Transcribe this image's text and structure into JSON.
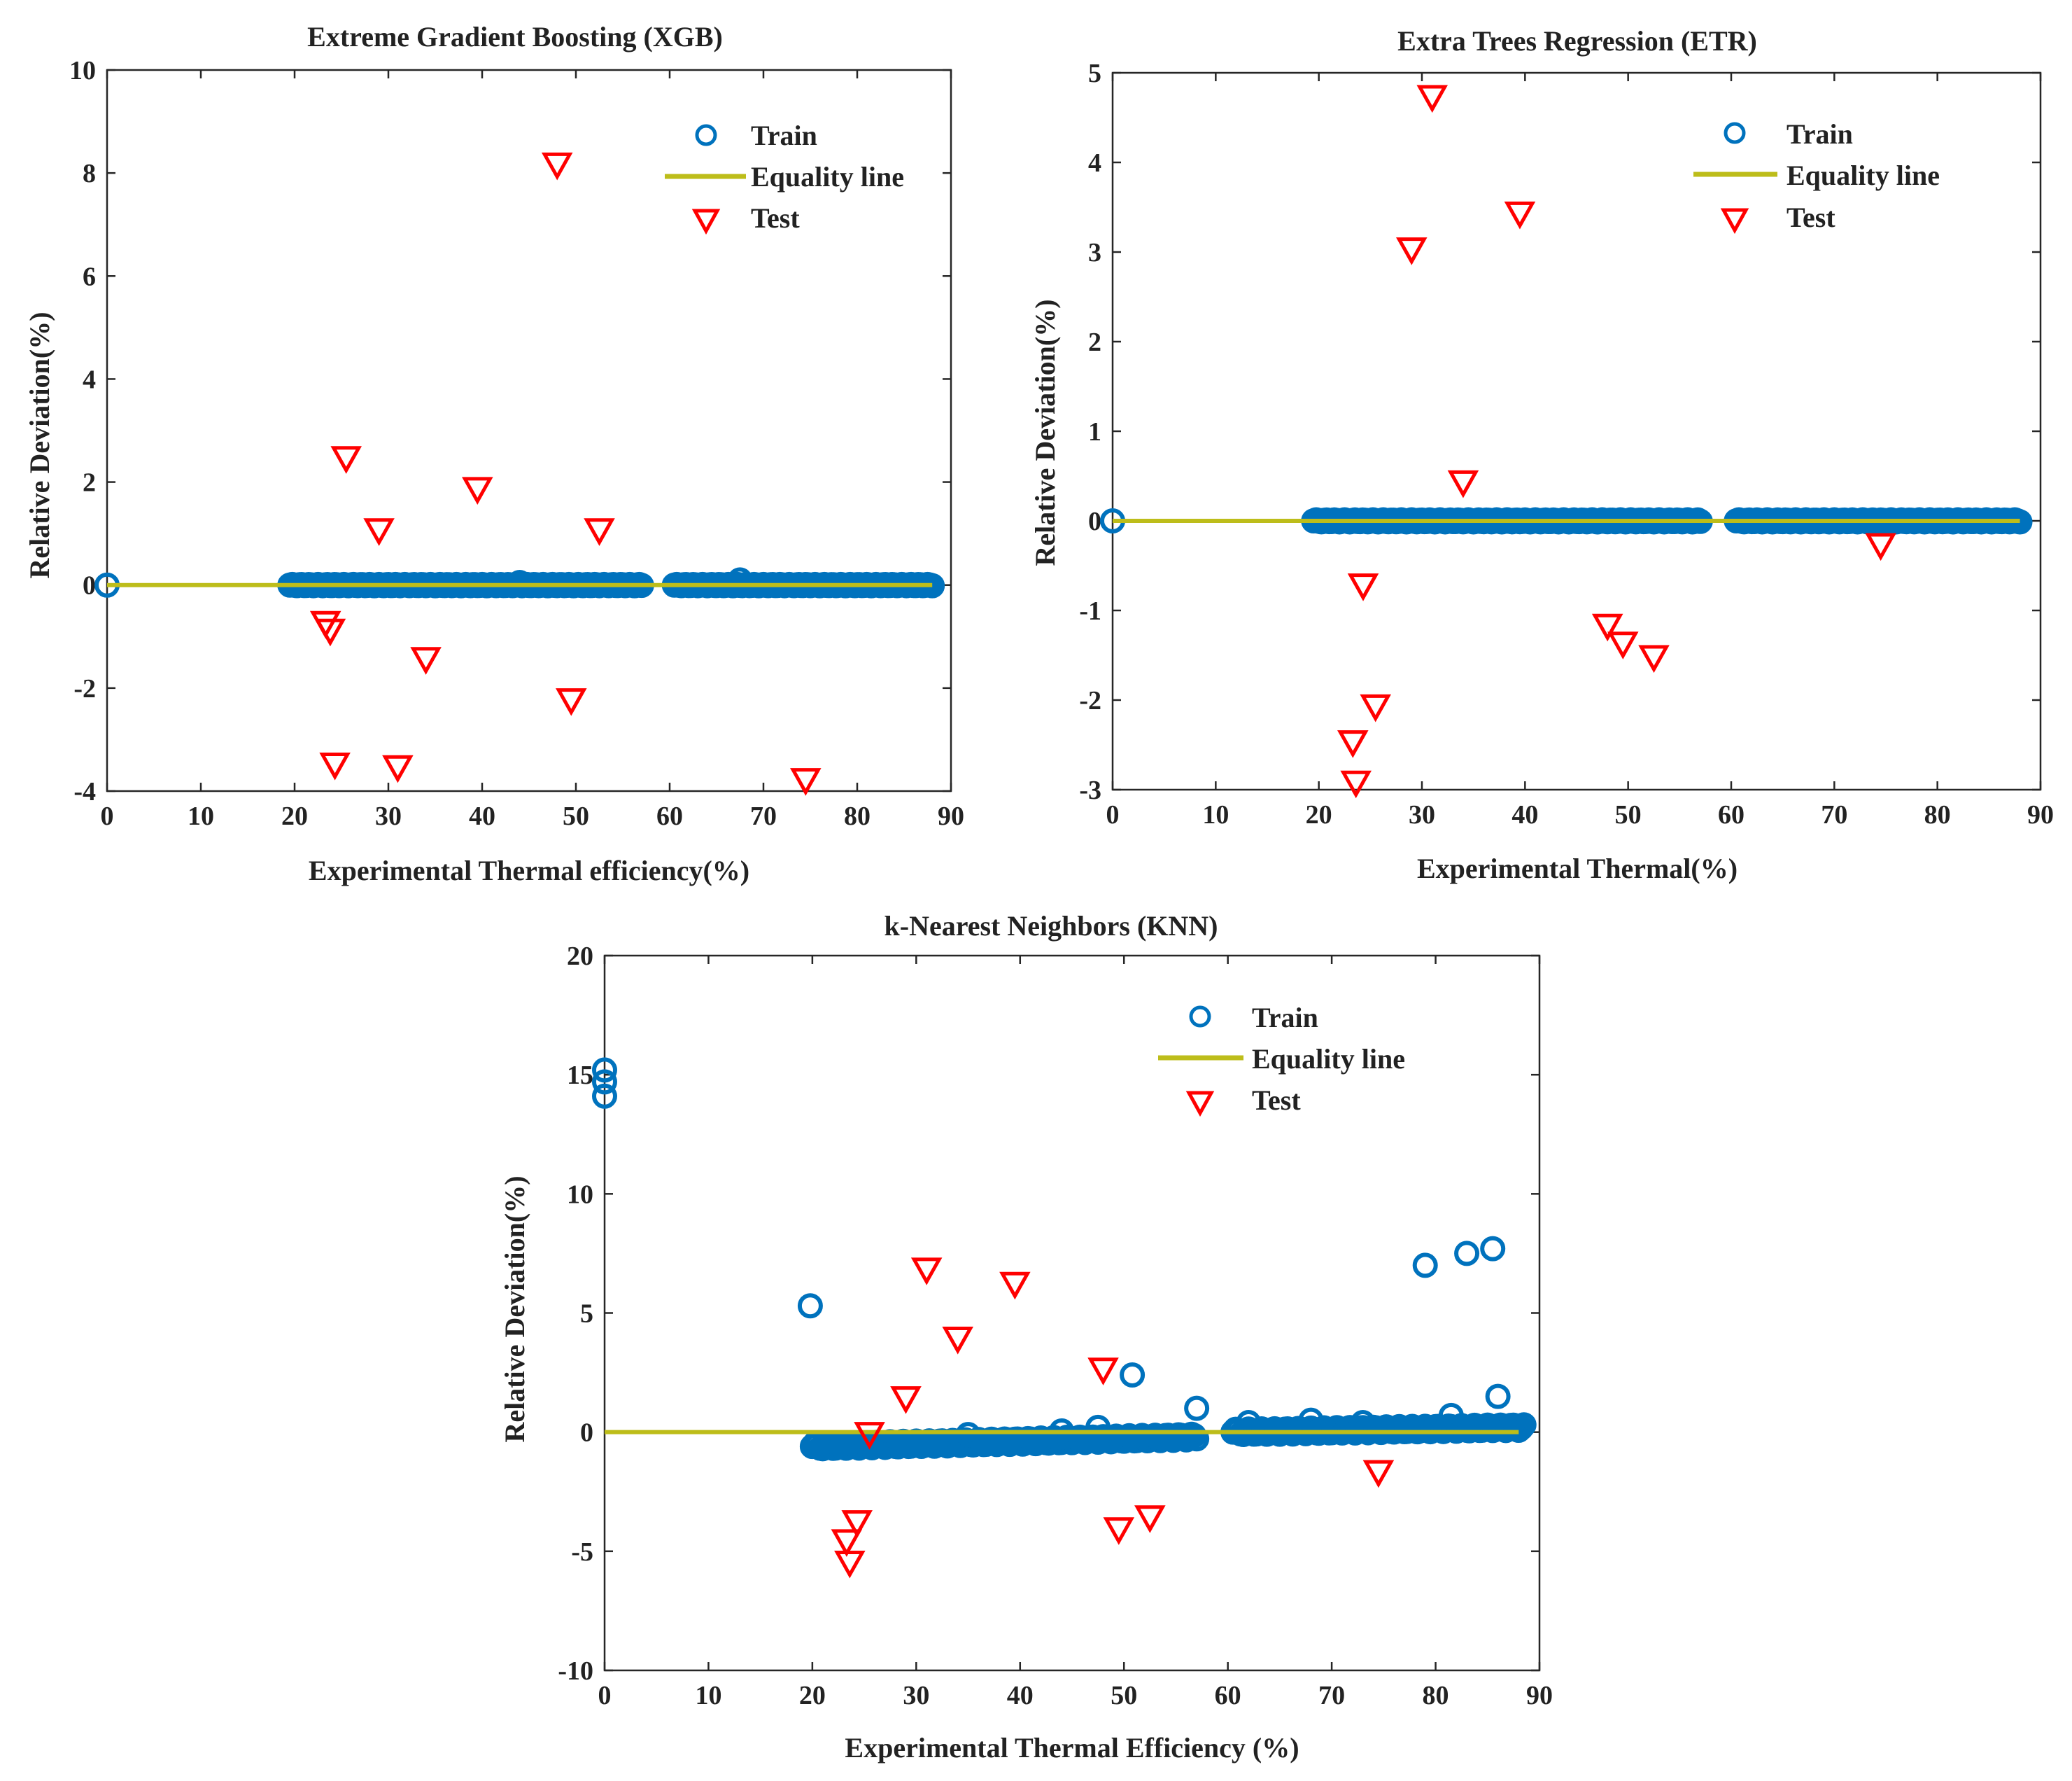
{
  "colors": {
    "train": "#0072BD",
    "test": "#FF0000",
    "equality": "#BDBD1A",
    "axis": "#262626"
  },
  "chart_data": [
    {
      "id": "xgb",
      "type": "scatter",
      "title": "Extreme Gradient Boosting (XGB)",
      "xlabel": "Experimental Thermal efficiency(%)",
      "ylabel": "Relative Deviation(%)",
      "xlim": [
        0,
        90
      ],
      "ylim": [
        -4,
        10
      ],
      "xticks": [
        0,
        10,
        20,
        30,
        40,
        50,
        60,
        70,
        80,
        90
      ],
      "yticks": [
        -4,
        -2,
        0,
        2,
        4,
        6,
        8,
        10
      ],
      "legend": {
        "position": "top-right",
        "entries": [
          "Train",
          "Equality line",
          "Test"
        ]
      },
      "equality_line": {
        "x": [
          0,
          88
        ],
        "y": [
          0,
          0
        ]
      },
      "train": {
        "clusters": [
          {
            "x_start": 19.5,
            "x_end": 57,
            "y": 0
          },
          {
            "x_start": 60.5,
            "x_end": 88,
            "y": 0
          }
        ],
        "points": [
          {
            "x": 0,
            "y": 0
          },
          {
            "x": 67.5,
            "y": 0.1
          },
          {
            "x": 44,
            "y": 0.05
          }
        ]
      },
      "test": [
        {
          "x": 48,
          "y": 8.2
        },
        {
          "x": 25.5,
          "y": 2.5
        },
        {
          "x": 39.5,
          "y": 1.9
        },
        {
          "x": 29,
          "y": 1.1
        },
        {
          "x": 52.5,
          "y": 1.1
        },
        {
          "x": 23.3,
          "y": -0.7
        },
        {
          "x": 23.8,
          "y": -0.85
        },
        {
          "x": 34,
          "y": -1.4
        },
        {
          "x": 49.5,
          "y": -2.2
        },
        {
          "x": 24.3,
          "y": -3.45
        },
        {
          "x": 31,
          "y": -3.5
        },
        {
          "x": 74.5,
          "y": -3.75
        }
      ]
    },
    {
      "id": "etr",
      "type": "scatter",
      "title": "Extra Trees Regression (ETR)",
      "xlabel": "Experimental Thermal(%)",
      "ylabel": "Relative Deviation(%)",
      "xlim": [
        0,
        90
      ],
      "ylim": [
        -3,
        5
      ],
      "xticks": [
        0,
        10,
        20,
        30,
        40,
        50,
        60,
        70,
        80,
        90
      ],
      "yticks": [
        -3,
        -2,
        -1,
        0,
        1,
        2,
        3,
        4,
        5
      ],
      "legend": {
        "position": "top-right",
        "entries": [
          "Train",
          "Equality line",
          "Test"
        ]
      },
      "equality_line": {
        "x": [
          0,
          88
        ],
        "y": [
          0,
          0
        ]
      },
      "train": {
        "clusters": [
          {
            "x_start": 19.5,
            "x_end": 57,
            "y": 0
          },
          {
            "x_start": 60.5,
            "x_end": 88,
            "y": 0
          }
        ],
        "points": [
          {
            "x": 0,
            "y": 0
          }
        ]
      },
      "test": [
        {
          "x": 31,
          "y": 4.75
        },
        {
          "x": 39.5,
          "y": 3.45
        },
        {
          "x": 29,
          "y": 3.05
        },
        {
          "x": 34,
          "y": 0.45
        },
        {
          "x": 74.5,
          "y": -0.25
        },
        {
          "x": 24.3,
          "y": -0.7
        },
        {
          "x": 48,
          "y": -1.15
        },
        {
          "x": 49.5,
          "y": -1.35
        },
        {
          "x": 52.5,
          "y": -1.5
        },
        {
          "x": 25.5,
          "y": -2.05
        },
        {
          "x": 23.3,
          "y": -2.45
        },
        {
          "x": 23.6,
          "y": -2.9
        }
      ]
    },
    {
      "id": "knn",
      "type": "scatter",
      "title": "k-Nearest Neighbors (KNN)",
      "xlabel": "Experimental Thermal Efficiency (%)",
      "ylabel": "Relative Deviation(%)",
      "xlim": [
        0,
        90
      ],
      "ylim": [
        -10,
        20
      ],
      "xticks": [
        0,
        10,
        20,
        30,
        40,
        50,
        60,
        70,
        80,
        90
      ],
      "yticks": [
        -10,
        -5,
        0,
        5,
        10,
        15,
        20
      ],
      "legend": {
        "position": "top-right",
        "entries": [
          "Train",
          "Equality line",
          "Test"
        ]
      },
      "equality_line": {
        "x": [
          0,
          88
        ],
        "y": [
          0,
          0
        ]
      },
      "train": {
        "clusters": [
          {
            "x_start": 20,
            "x_end": 57,
            "y_start": -0.6,
            "y_end": -0.2
          },
          {
            "x_start": 60.5,
            "x_end": 88.5,
            "y_start": 0.0,
            "y_end": 0.2
          }
        ],
        "points": [
          {
            "x": 0,
            "y": 15.2
          },
          {
            "x": 0,
            "y": 14.7
          },
          {
            "x": 0,
            "y": 14.1
          },
          {
            "x": 19.8,
            "y": 5.3
          },
          {
            "x": 50.8,
            "y": 2.4
          },
          {
            "x": 57,
            "y": 1.0
          },
          {
            "x": 47.5,
            "y": 0.2
          },
          {
            "x": 35,
            "y": -0.1
          },
          {
            "x": 44,
            "y": 0.05
          },
          {
            "x": 62,
            "y": 0.4
          },
          {
            "x": 68,
            "y": 0.5
          },
          {
            "x": 73,
            "y": 0.4
          },
          {
            "x": 79,
            "y": 7.0
          },
          {
            "x": 83,
            "y": 7.5
          },
          {
            "x": 85.5,
            "y": 7.7
          },
          {
            "x": 81.5,
            "y": 0.7
          },
          {
            "x": 86,
            "y": 1.5
          }
        ]
      },
      "test": [
        {
          "x": 31,
          "y": 6.9
        },
        {
          "x": 39.5,
          "y": 6.3
        },
        {
          "x": 34,
          "y": 4.0
        },
        {
          "x": 48,
          "y": 2.7
        },
        {
          "x": 29,
          "y": 1.5
        },
        {
          "x": 25.5,
          "y": 0.0
        },
        {
          "x": 74.5,
          "y": -1.6
        },
        {
          "x": 52.5,
          "y": -3.5
        },
        {
          "x": 24.3,
          "y": -3.7
        },
        {
          "x": 49.5,
          "y": -4.0
        },
        {
          "x": 23.3,
          "y": -4.5
        },
        {
          "x": 23.6,
          "y": -5.4
        }
      ]
    }
  ]
}
